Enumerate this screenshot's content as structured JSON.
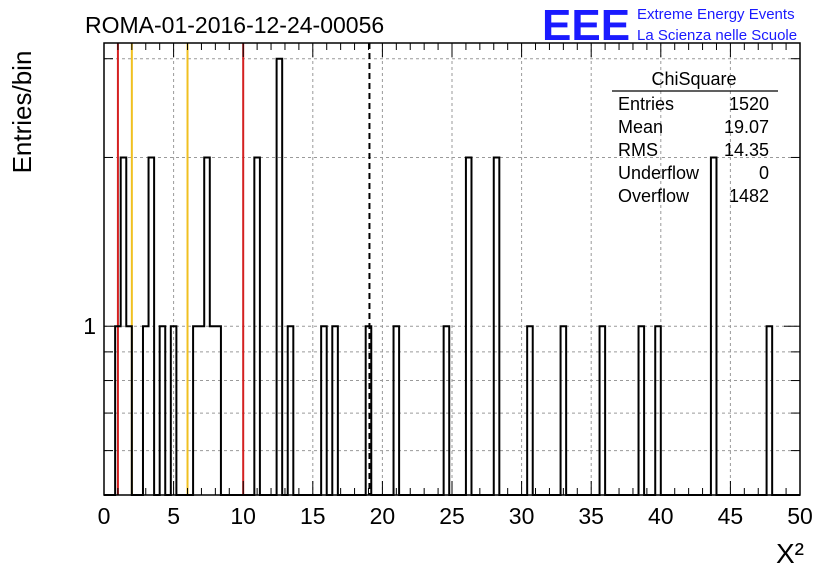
{
  "header": {
    "run_title": "ROMA-01-2016-12-24-00056",
    "logo_mark": "EEE",
    "logo_line1": "Extreme Energy Events",
    "logo_line2": "La Scienza nelle Scuole",
    "logo_color": "#1a1aff"
  },
  "stats_box": {
    "title": "ChiSquare",
    "rows": [
      {
        "label": "Entries",
        "value": "1520"
      },
      {
        "label": "Mean",
        "value": "19.07"
      },
      {
        "label": "RMS",
        "value": "14.35"
      },
      {
        "label": "Underflow",
        "value": "0"
      },
      {
        "label": "Overflow",
        "value": "1482"
      }
    ]
  },
  "chart_data": {
    "type": "histogram",
    "title": "ROMA-01-2016-12-24-00056",
    "xlabel": "X²",
    "ylabel": "Entries/bin",
    "xlim": [
      0,
      50
    ],
    "ylim": [
      0.5,
      3.2
    ],
    "y_scale": "log",
    "bin_width": 0.4,
    "x_ticks": [
      "0",
      "5",
      "10",
      "15",
      "20",
      "25",
      "30",
      "35",
      "40",
      "45",
      "50"
    ],
    "y_tick_labels": [
      {
        "value": 1,
        "label": "1"
      }
    ],
    "grid": true,
    "legend": "top-right",
    "bins": [
      {
        "x": 0.8,
        "y": 1
      },
      {
        "x": 1.2,
        "y": 2
      },
      {
        "x": 1.6,
        "y": 1
      },
      {
        "x": 2.8,
        "y": 1
      },
      {
        "x": 3.2,
        "y": 2
      },
      {
        "x": 4.0,
        "y": 1
      },
      {
        "x": 4.8,
        "y": 1
      },
      {
        "x": 6.4,
        "y": 1
      },
      {
        "x": 6.8,
        "y": 1
      },
      {
        "x": 7.2,
        "y": 2
      },
      {
        "x": 7.6,
        "y": 1
      },
      {
        "x": 8.0,
        "y": 1
      },
      {
        "x": 10.8,
        "y": 2
      },
      {
        "x": 12.4,
        "y": 3
      },
      {
        "x": 13.2,
        "y": 1
      },
      {
        "x": 15.6,
        "y": 1
      },
      {
        "x": 16.4,
        "y": 1
      },
      {
        "x": 18.8,
        "y": 1
      },
      {
        "x": 20.8,
        "y": 1
      },
      {
        "x": 24.4,
        "y": 1
      },
      {
        "x": 26.0,
        "y": 2
      },
      {
        "x": 28.0,
        "y": 2
      },
      {
        "x": 30.4,
        "y": 1
      },
      {
        "x": 32.8,
        "y": 1
      },
      {
        "x": 35.6,
        "y": 1
      },
      {
        "x": 38.4,
        "y": 1
      },
      {
        "x": 39.6,
        "y": 1
      },
      {
        "x": 43.6,
        "y": 2
      },
      {
        "x": 47.6,
        "y": 1
      }
    ],
    "reference_lines": [
      {
        "x": 1.0,
        "color": "#d42020",
        "style": "solid"
      },
      {
        "x": 2.0,
        "color": "#f0c020",
        "style": "solid"
      },
      {
        "x": 6.0,
        "color": "#f0c020",
        "style": "solid"
      },
      {
        "x": 10.0,
        "color": "#d42020",
        "style": "solid"
      },
      {
        "x": 19.07,
        "color": "#000000",
        "style": "dashed"
      }
    ]
  }
}
